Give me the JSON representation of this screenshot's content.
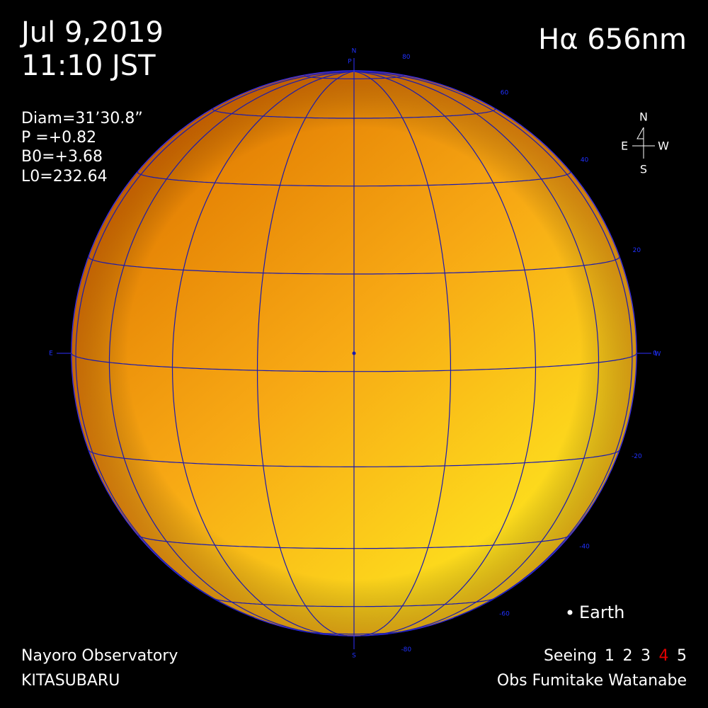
{
  "header": {
    "date": "Jul 9,2019",
    "time": "11:10 JST",
    "line": "Hα 656nm"
  },
  "parameters": [
    "Diam=31’30.8”",
    "P  =+0.82",
    "B0=+3.68",
    "L0=232.64"
  ],
  "disk_labels": {
    "north": "N",
    "pole": "P",
    "east": "E",
    "west": "W",
    "south": "S"
  },
  "latitudes": [
    80,
    60,
    40,
    20,
    0,
    -20,
    -40,
    -60,
    -80
  ],
  "compass": {
    "n": "N",
    "e": "E",
    "w": "W",
    "s": "S"
  },
  "earth": "Earth",
  "observatory": [
    "Nayoro Observatory",
    "KITASUBARU"
  ],
  "seeing": {
    "label": "Seeing",
    "scale": [
      1,
      2,
      3,
      4,
      5
    ],
    "rating": 4
  },
  "observer": "Obs Fumitake Watanabe"
}
